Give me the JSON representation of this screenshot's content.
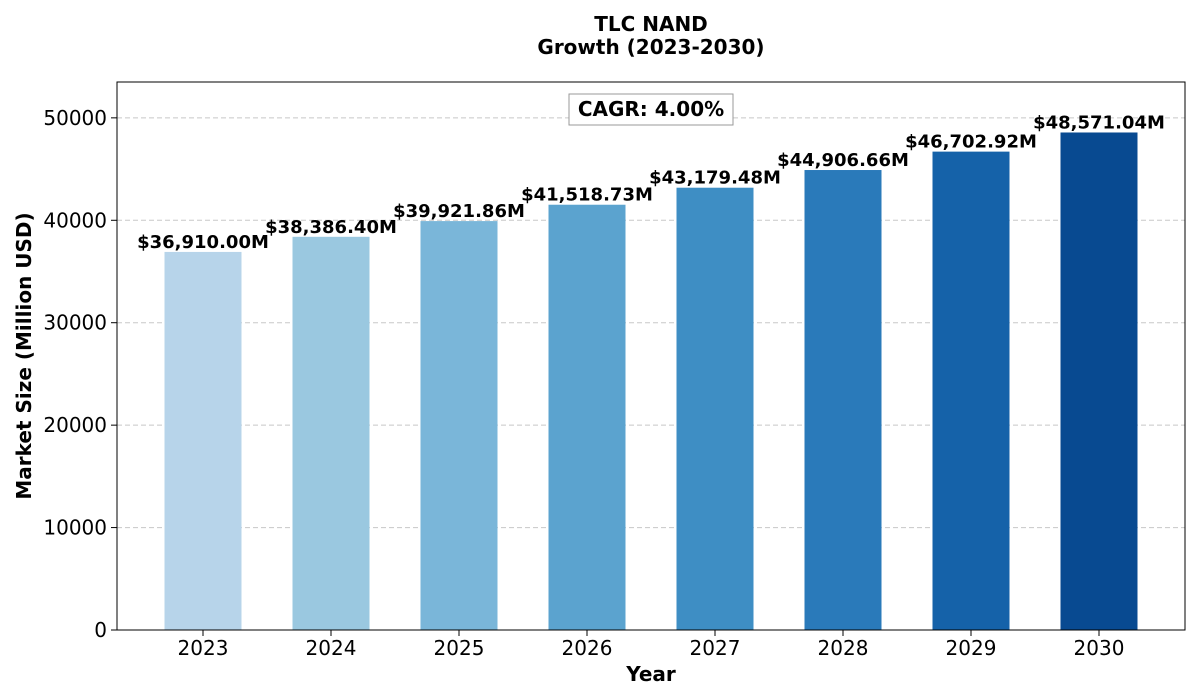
{
  "chart_data": {
    "type": "bar",
    "title_line1": "TLC NAND",
    "title_line2": "Growth (2023-2030)",
    "xlabel": "Year",
    "ylabel": "Market Size (Million USD)",
    "annotation": "CAGR: 4.00%",
    "categories": [
      "2023",
      "2024",
      "2025",
      "2026",
      "2027",
      "2028",
      "2029",
      "2030"
    ],
    "values": [
      36910.0,
      38386.4,
      39921.86,
      41518.73,
      43179.48,
      44906.66,
      46702.92,
      48571.04
    ],
    "value_labels": [
      "$36,910.00M",
      "$38,386.40M",
      "$39,921.86M",
      "$41,518.73M",
      "$43,179.48M",
      "$44,906.66M",
      "$46,702.92M",
      "$48,571.04M"
    ],
    "bar_colors": [
      "#b7d4ea",
      "#9ac8e0",
      "#7ab6d9",
      "#5ba3cf",
      "#3e8ec4",
      "#2a7aba",
      "#1562a9",
      "#084a91"
    ],
    "yticks": [
      0,
      10000,
      20000,
      30000,
      40000,
      50000
    ],
    "ytick_labels": [
      "0",
      "10000",
      "20000",
      "30000",
      "40000",
      "50000"
    ],
    "ylim": [
      0,
      53500
    ],
    "grid": "y-dashed",
    "annotation_placement": "top-center"
  }
}
